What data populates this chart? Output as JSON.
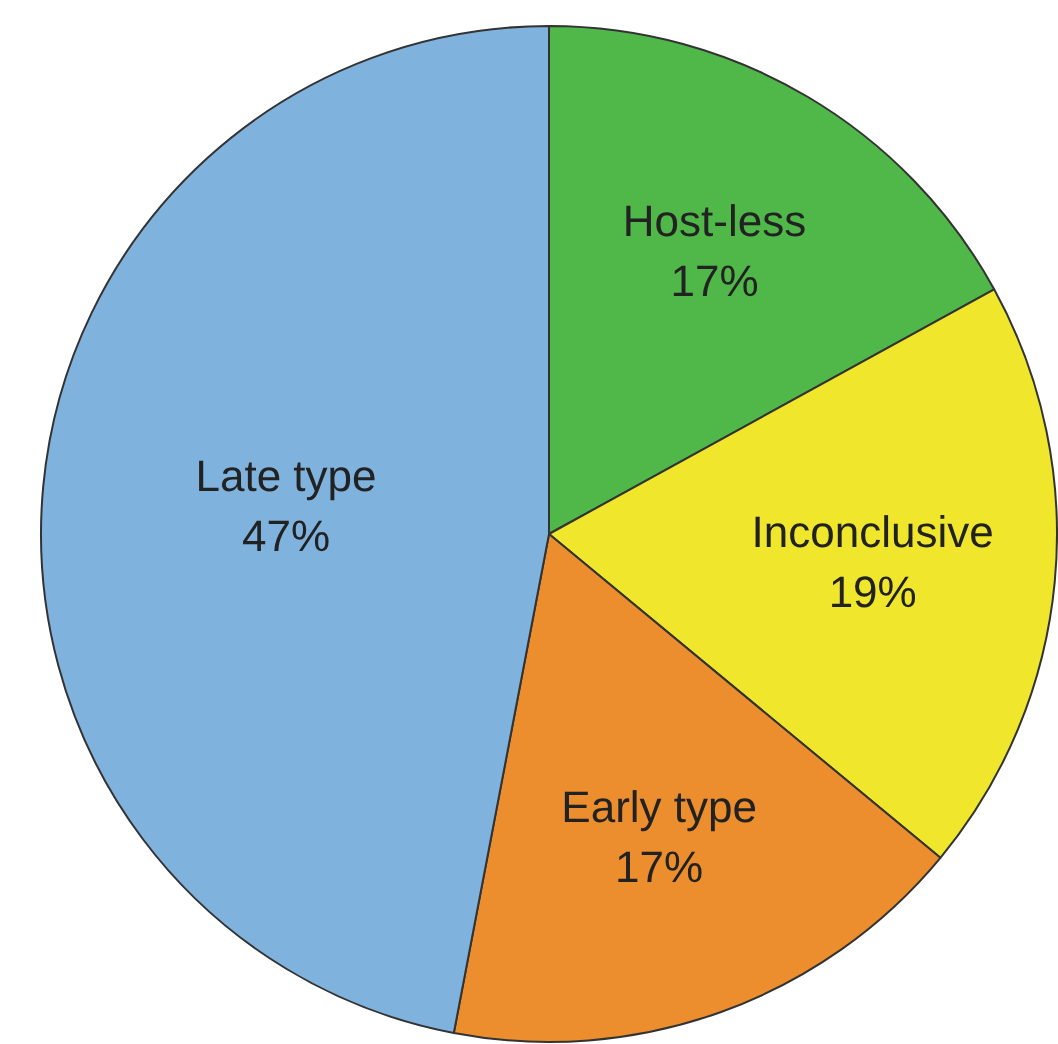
{
  "chart_data": {
    "type": "pie",
    "categories": [
      "Host-less",
      "Inconclusive",
      "Early type",
      "Late type"
    ],
    "values": [
      17,
      19,
      17,
      47
    ],
    "value_labels": [
      "17%",
      "19%",
      "17%",
      "47%"
    ],
    "colors": [
      "#4fb848",
      "#f0e62c",
      "#ec8e2e",
      "#7fb3de"
    ],
    "legend": false
  }
}
